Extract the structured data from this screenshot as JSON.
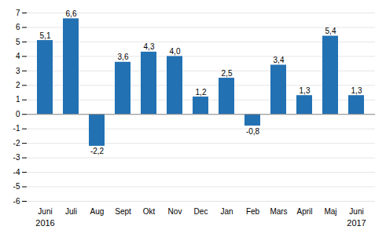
{
  "chart_data": {
    "type": "bar",
    "categories": [
      "Juni",
      "Juli",
      "Aug",
      "Sept",
      "Okt",
      "Nov",
      "Dec",
      "Jan",
      "Feb",
      "Mars",
      "April",
      "Maj",
      "Juni"
    ],
    "values": [
      5.1,
      6.6,
      -2.2,
      3.6,
      4.3,
      4.0,
      1.2,
      2.5,
      -0.8,
      3.4,
      1.3,
      5.4,
      1.3
    ],
    "value_labels": [
      "5,1",
      "6,6",
      "-2,2",
      "3,6",
      "4,3",
      "4,0",
      "1,2",
      "2,5",
      "-0,8",
      "3,4",
      "1,3",
      "5,4",
      "1,3"
    ],
    "data_labels": true,
    "color": "#2271b3",
    "ylim": [
      -6,
      7
    ],
    "yticks": [
      -6,
      -5,
      -4,
      -3,
      -2,
      -1,
      0,
      1,
      2,
      3,
      4,
      5,
      6,
      7
    ],
    "grid": true,
    "annotations": [
      {
        "text": "2016",
        "x": 0
      },
      {
        "text": "2017",
        "x": 12
      }
    ]
  }
}
